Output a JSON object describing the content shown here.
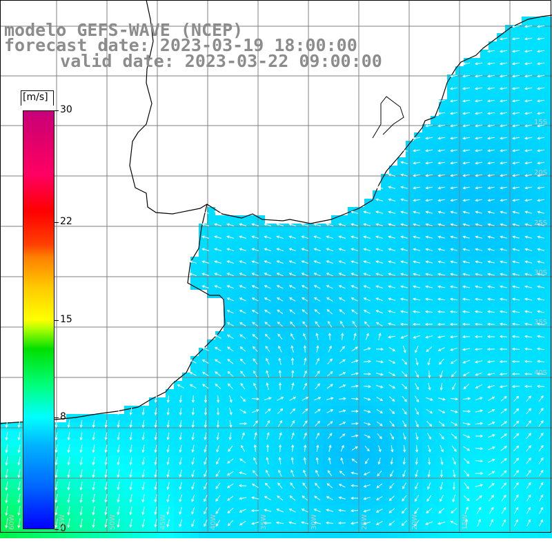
{
  "title_lines": [
    "modelo GEFS-WAVE (NCEP)",
    "forecast date: 2023-03-19 18:00:00",
    "   valid date: 2023-03-22 09:00:00"
  ],
  "colorbar": {
    "unit": "[m/s]",
    "min": 0,
    "max": 30,
    "ticks": [
      "0",
      "8",
      "15",
      "22",
      "30"
    ],
    "tick_values": [
      0,
      8,
      15,
      22,
      30
    ]
  },
  "map": {
    "lat_labels": [
      "15S",
      "20S",
      "25S",
      "30S",
      "35S",
      "40S"
    ],
    "lon_labels": [
      "60W",
      "55W",
      "50W",
      "45W",
      "40W",
      "35W",
      "30W",
      "25W",
      "20W",
      "15W"
    ],
    "colors": {
      "land_outline": "#000000",
      "grid": "#7f7f7f",
      "vectors": "#ffffff",
      "title": "#8c8c8c"
    }
  }
}
